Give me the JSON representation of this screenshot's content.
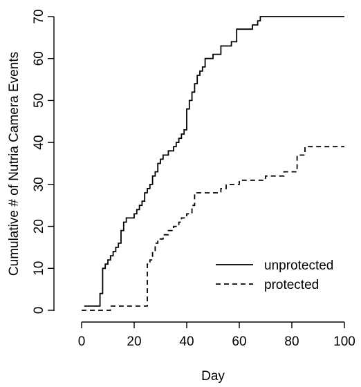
{
  "chart_data": {
    "type": "line",
    "title": "",
    "xlabel": "Day",
    "ylabel": "Cumulative # of Nutria Camera Events",
    "xlim": [
      0,
      100
    ],
    "ylim": [
      0,
      70
    ],
    "xticks": [
      0,
      20,
      40,
      60,
      80,
      100
    ],
    "yticks": [
      0,
      10,
      20,
      30,
      40,
      50,
      60,
      70
    ],
    "grid": false,
    "legend": "bottom-right",
    "step": true,
    "series": [
      {
        "name": "unprotected",
        "linestyle": "solid",
        "color": "#000000",
        "x": [
          1,
          5,
          7,
          8,
          9,
          10,
          11,
          12,
          13,
          14,
          15,
          16,
          17,
          18,
          20,
          21,
          22,
          23,
          24,
          25,
          26,
          27,
          28,
          29,
          30,
          31,
          33,
          35,
          36,
          37,
          38,
          39,
          40,
          41,
          42,
          43,
          44,
          45,
          46,
          47,
          50,
          53,
          57,
          59,
          65,
          67,
          68,
          69,
          100
        ],
        "y": [
          1,
          1,
          4,
          10,
          11,
          12,
          13,
          14,
          15,
          16,
          19,
          21,
          22,
          22,
          23,
          24,
          25,
          26,
          28,
          29,
          30,
          32,
          33,
          35,
          36,
          37,
          38,
          39,
          40,
          41,
          42,
          43,
          48,
          50,
          52,
          54,
          56,
          57,
          58,
          60,
          61,
          63,
          64,
          67,
          68,
          69,
          70,
          70,
          70
        ]
      },
      {
        "name": "protected",
        "linestyle": "dashed",
        "color": "#000000",
        "x": [
          0,
          11,
          20,
          25,
          26,
          27,
          28,
          29,
          31,
          33,
          35,
          37,
          38,
          40,
          42,
          43,
          51,
          53,
          55,
          60,
          65,
          70,
          74,
          77,
          82,
          85,
          100
        ],
        "y": [
          0,
          1,
          1,
          11,
          12,
          14,
          16,
          17,
          18,
          19,
          20,
          21,
          22,
          23,
          25,
          28,
          28,
          29,
          30,
          31,
          31,
          32,
          32,
          33,
          37,
          39,
          39
        ]
      }
    ]
  }
}
